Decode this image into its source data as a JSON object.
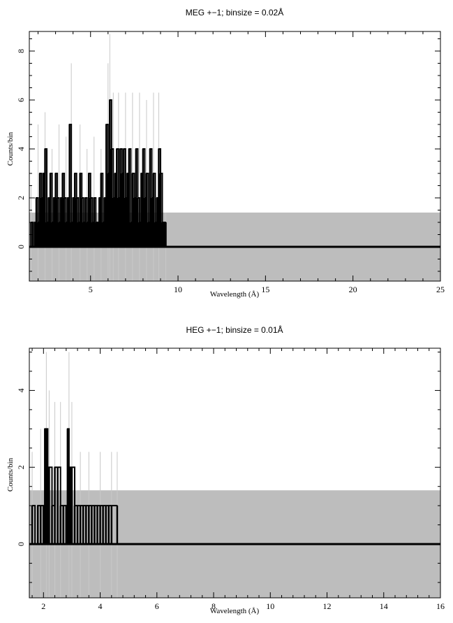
{
  "chart_data": [
    {
      "type": "line",
      "title": "MEG +−1; binsize = 0.02Å",
      "xlabel": "Wavelength (Å)",
      "ylabel": "Counts/bin",
      "xlim": [
        1.5,
        25
      ],
      "ylim": [
        -1.4,
        8.8
      ],
      "xticks": [
        5,
        10,
        15,
        20,
        25
      ],
      "xtick_labels": [
        "5",
        "10",
        "15",
        "20",
        "25"
      ],
      "yticks": [
        0,
        2,
        4,
        6,
        8
      ],
      "ytick_labels": [
        "0",
        "2",
        "4",
        "6",
        "8"
      ],
      "grid": false,
      "background_band": {
        "x": [
          1.5,
          25
        ],
        "y": [
          -1.4,
          1.4
        ],
        "color": "#bdbdbd"
      },
      "series": [
        {
          "style": "counts",
          "color": "#000000",
          "x": [
            1.6,
            1.7,
            1.8,
            1.9,
            2.0,
            2.1,
            2.2,
            2.3,
            2.4,
            2.5,
            2.6,
            2.7,
            2.8,
            2.9,
            3.0,
            3.1,
            3.2,
            3.3,
            3.4,
            3.5,
            3.6,
            3.7,
            3.8,
            3.9,
            4.0,
            4.1,
            4.2,
            4.3,
            4.4,
            4.5,
            4.6,
            4.7,
            4.8,
            4.9,
            5.0,
            5.1,
            5.2,
            5.3,
            5.4,
            5.5,
            5.6,
            5.7,
            5.8,
            5.9,
            6.0,
            6.1,
            6.2,
            6.3,
            6.4,
            6.5,
            6.6,
            6.7,
            6.8,
            6.9,
            7.0,
            7.1,
            7.2,
            7.3,
            7.4,
            7.5,
            7.6,
            7.7,
            7.8,
            7.9,
            8.0,
            8.1,
            8.2,
            8.3,
            8.4,
            8.5,
            8.6,
            8.7,
            8.8,
            8.9,
            9.0,
            9.1,
            9.2,
            9.3
          ],
          "values": [
            1,
            0,
            1,
            2,
            1,
            3,
            2,
            3,
            4,
            1,
            2,
            3,
            1,
            2,
            3,
            2,
            1,
            2,
            3,
            2,
            1,
            2,
            5,
            1,
            2,
            3,
            2,
            1,
            3,
            2,
            1,
            2,
            1,
            3,
            2,
            1,
            2,
            1,
            1,
            2,
            3,
            1,
            2,
            5,
            3,
            6,
            4,
            2,
            3,
            4,
            2,
            4,
            3,
            4,
            2,
            3,
            4,
            1,
            3,
            2,
            4,
            2,
            1,
            3,
            4,
            2,
            3,
            1,
            4,
            2,
            3,
            1,
            2,
            4,
            3,
            1,
            1,
            1
          ]
        },
        {
          "style": "error-band",
          "color": "#c8c8c8",
          "x": [
            1.6,
            2.0,
            2.4,
            2.8,
            3.2,
            3.6,
            3.9,
            4.4,
            4.8,
            5.2,
            5.6,
            6.0,
            6.1,
            6.3,
            6.6,
            7.0,
            7.4,
            7.8,
            8.2,
            8.6,
            8.9,
            9.3
          ],
          "upper": [
            2.5,
            5.0,
            5.5,
            4.0,
            5.0,
            4.5,
            7.5,
            5.0,
            4.0,
            4.5,
            4.0,
            7.5,
            8.7,
            6.3,
            6.3,
            6.3,
            6.3,
            6.3,
            6.0,
            6.3,
            6.3,
            1.4
          ],
          "lower": [
            -1.4,
            -1.4,
            -1.4,
            -1.4,
            -1.4,
            -1.4,
            -1.4,
            -1.4,
            -1.4,
            -1.4,
            -1.4,
            -1.4,
            -1.4,
            -1.4,
            -1.4,
            -1.4,
            -1.4,
            -1.4,
            -1.4,
            -1.4,
            -1.4,
            -1.4
          ]
        }
      ]
    },
    {
      "type": "line",
      "title": "HEG +−1; binsize = 0.01Å",
      "xlabel": "Wavelength (Å)",
      "ylabel": "Counts/bin",
      "xlim": [
        1.5,
        16
      ],
      "ylim": [
        -1.4,
        5.1
      ],
      "xticks": [
        2,
        4,
        6,
        8,
        10,
        12,
        14,
        16
      ],
      "xtick_labels": [
        "2",
        "4",
        "6",
        "8",
        "10",
        "12",
        "14",
        "16"
      ],
      "yticks": [
        0,
        2,
        4
      ],
      "ytick_labels": [
        "0",
        "2",
        "4"
      ],
      "grid": false,
      "background_band": {
        "x": [
          1.5,
          16
        ],
        "y": [
          -1.4,
          1.4
        ],
        "color": "#bdbdbd"
      },
      "series": [
        {
          "style": "counts",
          "color": "#000000",
          "x": [
            1.6,
            1.7,
            1.8,
            1.9,
            2.0,
            2.05,
            2.1,
            2.15,
            2.2,
            2.3,
            2.4,
            2.5,
            2.6,
            2.7,
            2.8,
            2.85,
            2.9,
            2.95,
            3.0,
            3.1,
            3.2,
            3.3,
            3.4,
            3.5,
            3.6,
            3.7,
            3.8,
            3.9,
            4.0,
            4.1,
            4.2,
            4.3,
            4.4,
            4.6
          ],
          "values": [
            1,
            0,
            1,
            1,
            1,
            3,
            3,
            1,
            2,
            1,
            2,
            2,
            1,
            1,
            1,
            3,
            2,
            1,
            2,
            1,
            1,
            1,
            1,
            1,
            1,
            1,
            1,
            1,
            1,
            1,
            1,
            1,
            1,
            1
          ]
        },
        {
          "style": "error-band",
          "color": "#c8c8c8",
          "x": [
            1.6,
            1.9,
            2.1,
            2.2,
            2.4,
            2.6,
            2.9,
            3.0,
            3.3,
            3.6,
            4.0,
            4.4,
            4.6
          ],
          "upper": [
            2.4,
            3.0,
            5.0,
            4.0,
            3.7,
            3.7,
            5.0,
            3.7,
            2.4,
            2.4,
            2.4,
            2.4,
            2.4
          ],
          "lower": [
            -1.4,
            -1.4,
            -1.4,
            -1.4,
            -1.4,
            -1.4,
            -1.4,
            -1.4,
            -1.4,
            -1.4,
            -1.4,
            -1.4,
            -1.4
          ]
        }
      ]
    }
  ]
}
